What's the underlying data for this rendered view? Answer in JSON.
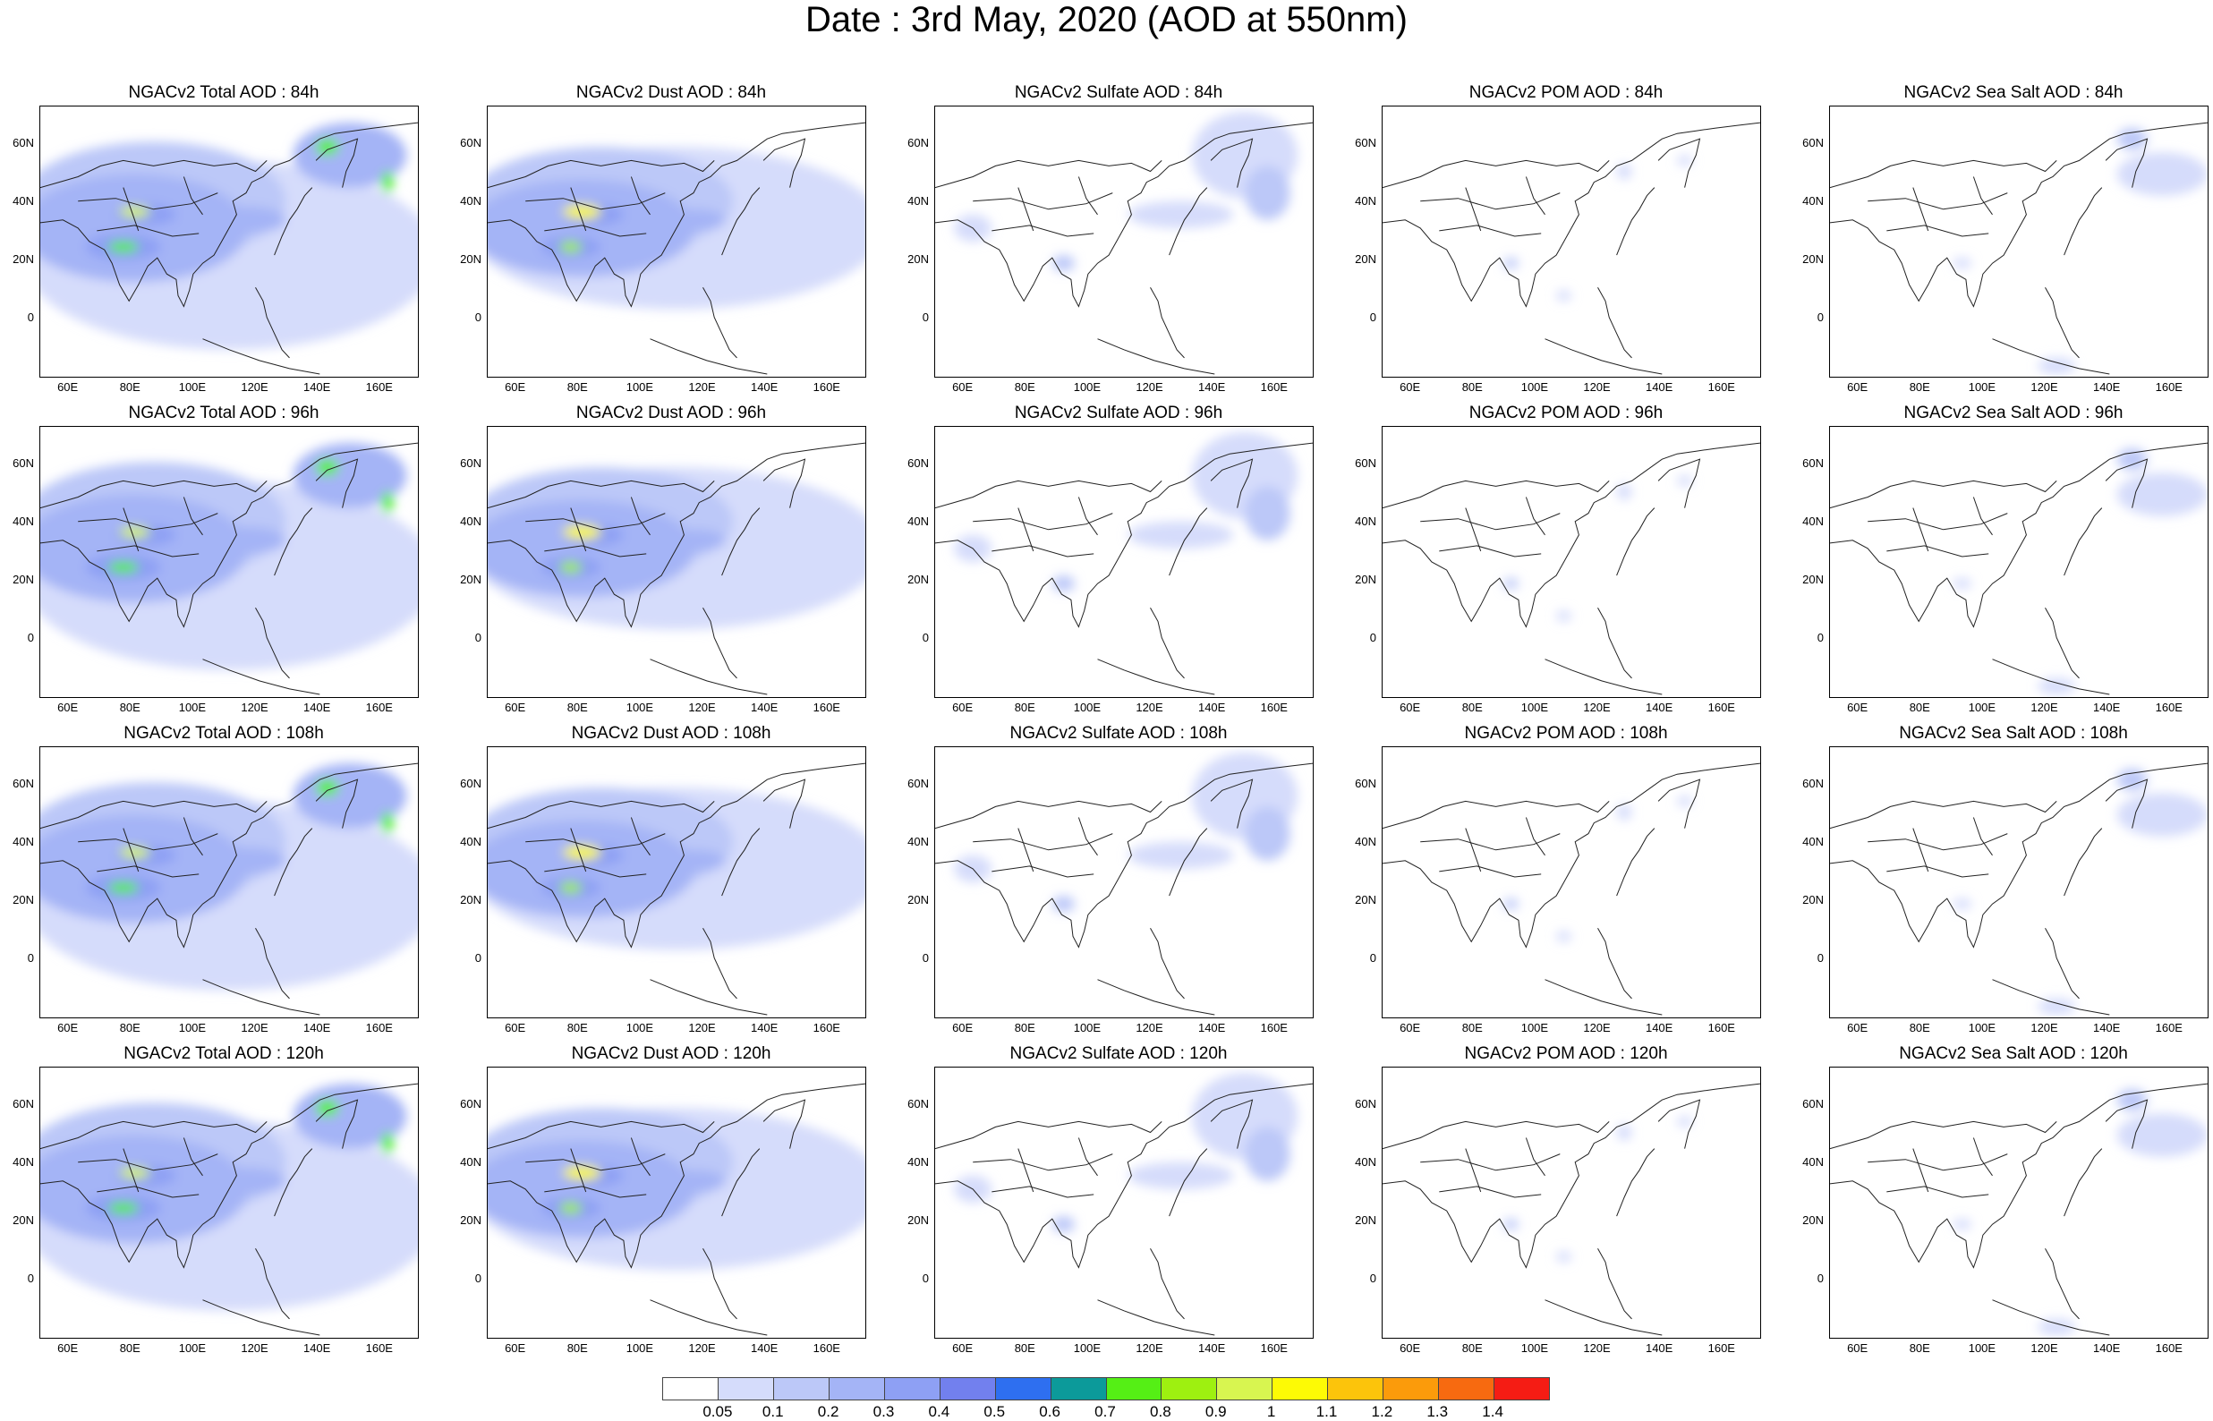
{
  "title": "Date : 3rd May, 2020 (AOD at 550nm)",
  "lat_labels": [
    "60N",
    "40N",
    "20N",
    "0"
  ],
  "lon_labels": [
    "60E",
    "80E",
    "100E",
    "120E",
    "140E",
    "160E"
  ],
  "panels": [
    [
      "NGACv2 Total AOD : 84h",
      "NGACv2 Dust AOD : 84h",
      "NGACv2 Sulfate AOD : 84h",
      "NGACv2 POM AOD : 84h",
      "NGACv2 Sea Salt AOD : 84h"
    ],
    [
      "NGACv2 Total AOD : 96h",
      "NGACv2 Dust AOD : 96h",
      "NGACv2 Sulfate AOD : 96h",
      "NGACv2 POM AOD : 96h",
      "NGACv2 Sea Salt AOD : 96h"
    ],
    [
      "NGACv2 Total AOD : 108h",
      "NGACv2 Dust AOD : 108h",
      "NGACv2 Sulfate AOD : 108h",
      "NGACv2 POM AOD : 108h",
      "NGACv2 Sea Salt AOD : 108h"
    ],
    [
      "NGACv2 Total AOD : 120h",
      "NGACv2 Dust AOD : 120h",
      "NGACv2 Sulfate AOD : 120h",
      "NGACv2 POM AOD : 120h",
      "NGACv2 Sea Salt  AOD : 120h"
    ]
  ],
  "colorbar": {
    "labels": [
      "0.05",
      "0.1",
      "0.2",
      "0.3",
      "0.4",
      "0.5",
      "0.6",
      "0.7",
      "0.8",
      "0.9",
      "1",
      "1.1",
      "1.2",
      "1.3",
      "1.4"
    ],
    "colors": [
      "#ffffff",
      "#d5dcfb",
      "#bcc8f8",
      "#a4b4f6",
      "#8ea0f4",
      "#7280ee",
      "#2e6ff0",
      "#0c9a9a",
      "#55ef15",
      "#9ef010",
      "#d8f550",
      "#fdfa05",
      "#fcc40b",
      "#fb9b0b",
      "#f76a10",
      "#f51c14"
    ]
  }
}
